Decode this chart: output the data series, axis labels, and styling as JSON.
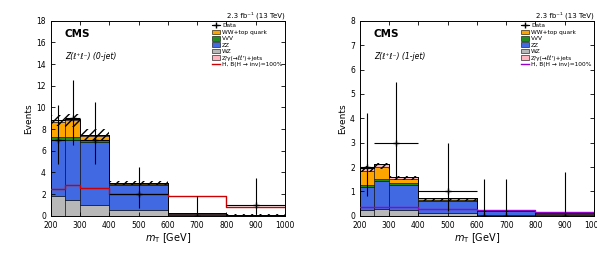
{
  "left": {
    "title_cms": "CMS",
    "subtitle": "Z(ℓ⁺ℓ⁻) (0-jet)",
    "lumi": "2.3 fb⁻¹ (13 TeV)",
    "ylim": [
      0,
      18
    ],
    "yticks": [
      0,
      2,
      4,
      6,
      8,
      10,
      12,
      14,
      16,
      18
    ],
    "ylabel": "Events",
    "xlabel": "$m_{\\mathrm{T}}$ [GeV]",
    "bin_edges": [
      200,
      250,
      300,
      400,
      600,
      800,
      1000
    ],
    "WZ": [
      1.8,
      1.5,
      1.0,
      0.5,
      0.05,
      0.03
    ],
    "ZZ": [
      5.2,
      5.5,
      5.8,
      2.3,
      0.12,
      0.05
    ],
    "VVV": [
      0.3,
      0.3,
      0.2,
      0.1,
      0.02,
      0.01
    ],
    "WWtop": [
      1.4,
      1.5,
      0.4,
      0.1,
      0.02,
      0.01
    ],
    "Zjets": [
      0.1,
      0.1,
      0.05,
      0.03,
      0.01,
      0.01
    ],
    "signal": [
      2.5,
      2.8,
      2.6,
      2.0,
      1.8,
      0.8
    ],
    "data_x": [
      225,
      275,
      350,
      500,
      700,
      900
    ],
    "data_xerr": [
      25,
      25,
      50,
      100,
      100,
      100
    ],
    "data_y": [
      7.0,
      9.0,
      7.0,
      2.0,
      0.0,
      1.0
    ],
    "data_yerr_lo": [
      2.2,
      2.5,
      2.2,
      1.3,
      0.0,
      0.8
    ],
    "data_yerr_hi": [
      3.2,
      3.5,
      3.5,
      2.5,
      1.8,
      2.5
    ],
    "hatch_lo": [
      8.3,
      8.2,
      7.0,
      2.85,
      0.18,
      0.08
    ],
    "hatch_hi": [
      9.3,
      9.4,
      8.0,
      3.2,
      0.25,
      0.12
    ]
  },
  "right": {
    "title_cms": "CMS",
    "subtitle": "Z(ℓ⁺ℓ⁻) (1-jet)",
    "lumi": "2.3 fb⁻¹ (13 TeV)",
    "ylim": [
      0,
      8
    ],
    "yticks": [
      0,
      1,
      2,
      3,
      4,
      5,
      6,
      7,
      8
    ],
    "ylabel": "Events",
    "xlabel": "$m_{\\mathrm{T}}$ [GeV]",
    "bin_edges": [
      200,
      250,
      300,
      400,
      600,
      800,
      1000
    ],
    "WZ": [
      0.25,
      0.28,
      0.22,
      0.12,
      0.05,
      0.02
    ],
    "ZZ": [
      0.95,
      1.15,
      1.05,
      0.48,
      0.13,
      0.06
    ],
    "VVV": [
      0.08,
      0.1,
      0.07,
      0.04,
      0.01,
      0.005
    ],
    "WWtop": [
      0.55,
      0.48,
      0.18,
      0.07,
      0.015,
      0.005
    ],
    "Zjets": [
      0.12,
      0.1,
      0.06,
      0.03,
      0.01,
      0.005
    ],
    "signal": [
      0.35,
      0.38,
      0.35,
      0.28,
      0.22,
      0.15
    ],
    "data_x": [
      225,
      325,
      500,
      625,
      700,
      900
    ],
    "data_xerr": [
      25,
      75,
      100,
      25,
      100,
      100
    ],
    "data_y": [
      2.0,
      3.0,
      1.0,
      0.0,
      0.0,
      0.0
    ],
    "data_yerr_lo": [
      1.2,
      1.5,
      0.8,
      0.0,
      0.0,
      0.0
    ],
    "data_yerr_hi": [
      2.2,
      2.5,
      2.0,
      1.5,
      1.5,
      1.8
    ],
    "hatch_lo": [
      1.8,
      1.92,
      1.45,
      0.62,
      0.2,
      0.09
    ],
    "hatch_hi": [
      2.05,
      2.18,
      1.65,
      0.72,
      0.24,
      0.11
    ]
  },
  "colors": {
    "WZ": "#b8b8b8",
    "ZZ": "#4169e1",
    "VVV": "#228b22",
    "WWtop": "#ffa500",
    "Zjets": "#ffb6c1",
    "signal_left": "#cc0000",
    "signal_right": "#9900cc"
  },
  "legend_labels": {
    "data": "Data",
    "WWtop": "WW+top quark",
    "VVV": "VVV",
    "ZZ": "ZZ",
    "WZ": "WZ",
    "Zjets": "Z/γ(→ℓℓ')+jets",
    "signal": "H, B(H → inv)=100%"
  }
}
